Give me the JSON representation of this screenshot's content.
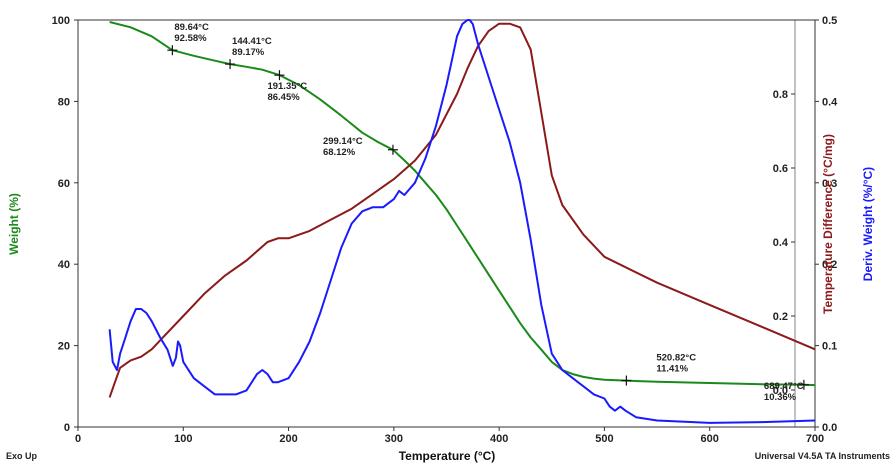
{
  "chart_data": {
    "type": "line",
    "xlabel": "Temperature (°C)",
    "ylabel_left": "Weight (%)",
    "ylabel_right_inner": "Temperature Difference (°C/mg)",
    "ylabel_right_outer": "Deriv. Weight (%/°C)",
    "xlim": [
      0,
      700
    ],
    "ylim_weight": [
      0,
      100
    ],
    "ylim_tempdiff": [
      -0.1,
      1.0
    ],
    "ylim_deriv": [
      0,
      0.5
    ],
    "x_ticks": [
      "0",
      "100",
      "200",
      "300",
      "400",
      "500",
      "600",
      "700"
    ],
    "weight_ticks": [
      "0",
      "20",
      "40",
      "60",
      "80",
      "100"
    ],
    "tempdiff_ticks": [
      "0.0",
      "0.2",
      "0.4",
      "0.6",
      "0.8"
    ],
    "deriv_ticks": [
      "0.0",
      "0.1",
      "0.2",
      "0.3",
      "0.4",
      "0.5"
    ],
    "series": [
      {
        "axis": "weight",
        "color": "#1a8a1a",
        "x": [
          30,
          50,
          70,
          89.64,
          110,
          130,
          144.41,
          160,
          175,
          191.35,
          210,
          230,
          250,
          270,
          285,
          299.14,
          310,
          320,
          330,
          340,
          350,
          360,
          370,
          380,
          390,
          400,
          410,
          420,
          430,
          440,
          450,
          460,
          470,
          480,
          490,
          500,
          520.82,
          550,
          600,
          650,
          689.47,
          700
        ],
        "y": [
          99.5,
          98.2,
          96,
          92.58,
          91.2,
          90,
          89.17,
          88.5,
          87.8,
          86.45,
          84,
          80.5,
          76.5,
          72.3,
          70,
          68.12,
          65.5,
          63,
          60,
          57,
          53.5,
          49.5,
          45.5,
          41.5,
          37.5,
          33.5,
          29.5,
          25.5,
          22,
          19,
          16,
          14,
          13,
          12.3,
          11.9,
          11.6,
          11.41,
          11.1,
          10.8,
          10.5,
          10.36,
          10.3
        ]
      },
      {
        "axis": "tempdiff",
        "color": "#8b1a1a",
        "x": [
          30,
          35,
          40,
          50,
          60,
          70,
          80,
          100,
          120,
          140,
          160,
          180,
          190,
          200,
          220,
          240,
          260,
          280,
          300,
          320,
          340,
          360,
          370,
          380,
          390,
          400,
          410,
          420,
          430,
          440,
          450,
          460,
          480,
          500,
          550,
          600,
          650,
          700
        ],
        "y": [
          -0.02,
          0.02,
          0.06,
          0.08,
          0.09,
          0.11,
          0.14,
          0.2,
          0.26,
          0.31,
          0.35,
          0.4,
          0.41,
          0.41,
          0.43,
          0.46,
          0.49,
          0.53,
          0.57,
          0.62,
          0.69,
          0.8,
          0.87,
          0.93,
          0.97,
          0.99,
          0.99,
          0.98,
          0.92,
          0.75,
          0.58,
          0.5,
          0.42,
          0.36,
          0.29,
          0.23,
          0.17,
          0.11
        ]
      },
      {
        "axis": "deriv",
        "color": "#1a1aff",
        "x": [
          30,
          33,
          37,
          40,
          45,
          50,
          55,
          60,
          65,
          70,
          78,
          85,
          90,
          93,
          95,
          97,
          100,
          110,
          120,
          130,
          140,
          150,
          160,
          170,
          175,
          180,
          185,
          190,
          200,
          210,
          220,
          230,
          240,
          250,
          260,
          270,
          280,
          290,
          295,
          300,
          305,
          310,
          320,
          330,
          340,
          350,
          355,
          360,
          365,
          370,
          372,
          375,
          380,
          390,
          400,
          410,
          420,
          430,
          440,
          450,
          460,
          470,
          480,
          490,
          500,
          505,
          510,
          515,
          520,
          530,
          550,
          600,
          650,
          700
        ],
        "y": [
          0.12,
          0.08,
          0.07,
          0.09,
          0.11,
          0.13,
          0.145,
          0.145,
          0.14,
          0.13,
          0.11,
          0.095,
          0.075,
          0.085,
          0.105,
          0.1,
          0.08,
          0.06,
          0.05,
          0.04,
          0.04,
          0.04,
          0.045,
          0.065,
          0.07,
          0.065,
          0.055,
          0.055,
          0.06,
          0.08,
          0.105,
          0.14,
          0.18,
          0.22,
          0.25,
          0.265,
          0.27,
          0.27,
          0.275,
          0.28,
          0.29,
          0.285,
          0.3,
          0.33,
          0.37,
          0.42,
          0.45,
          0.48,
          0.495,
          0.5,
          0.5,
          0.495,
          0.47,
          0.43,
          0.39,
          0.35,
          0.3,
          0.23,
          0.15,
          0.09,
          0.07,
          0.06,
          0.05,
          0.04,
          0.035,
          0.025,
          0.02,
          0.025,
          0.02,
          0.012,
          0.008,
          0.005,
          0.006,
          0.008
        ]
      }
    ],
    "annotations": [
      {
        "x": 89.64,
        "y": 92.58,
        "temp_label": "89.64°C",
        "weight_label": "92.58%",
        "anchor": "above-right"
      },
      {
        "x": 144.41,
        "y": 89.17,
        "temp_label": "144.41°C",
        "weight_label": "89.17%",
        "anchor": "above-right"
      },
      {
        "x": 191.35,
        "y": 86.45,
        "temp_label": "191.35°C",
        "weight_label": "86.45%",
        "anchor": "below-left"
      },
      {
        "x": 299.14,
        "y": 68.12,
        "temp_label": "299.14°C",
        "weight_label": "68.12%",
        "anchor": "left"
      },
      {
        "x": 520.82,
        "y": 11.41,
        "temp_label": "520.82°C",
        "weight_label": "11.41%",
        "anchor": "above"
      },
      {
        "x": 689.47,
        "y": 10.36,
        "temp_label": "689.47°C",
        "weight_label": "10.36%",
        "anchor": "below-left"
      }
    ],
    "footer_left": "Exo Up",
    "footer_right": "Universal V4.5A TA Instruments"
  }
}
